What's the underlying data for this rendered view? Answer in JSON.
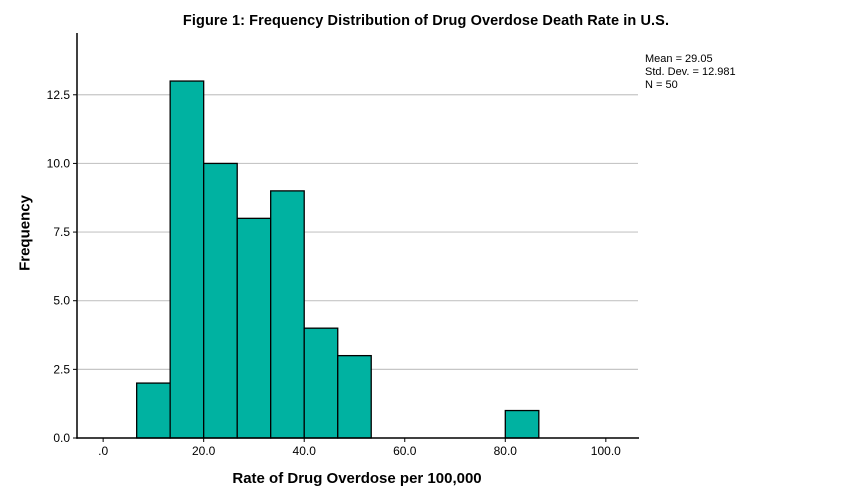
{
  "title": "Figure 1: Frequency Distribution of Drug Overdose Death Rate in U.S.",
  "colors": {
    "background": "#FFFFFF",
    "bar_fill": "#00B2A1",
    "bar_stroke": "#000000",
    "grid": "#C6C6C6",
    "axis": "#000000",
    "text": "#000000"
  },
  "chart_data": {
    "type": "bar",
    "subtype": "histogram",
    "title": "Figure 1: Frequency Distribution of Drug Overdose Death Rate in U.S.",
    "xlabel": "Rate of Drug Overdose per 100,000",
    "ylabel": "Frequency",
    "bins": [
      {
        "x0": 6.67,
        "x1": 13.33,
        "frequency": 2
      },
      {
        "x0": 13.33,
        "x1": 20,
        "frequency": 13
      },
      {
        "x0": 20,
        "x1": 26.67,
        "frequency": 10
      },
      {
        "x0": 26.67,
        "x1": 33.33,
        "frequency": 8
      },
      {
        "x0": 33.33,
        "x1": 40,
        "frequency": 9
      },
      {
        "x0": 40,
        "x1": 46.67,
        "frequency": 4
      },
      {
        "x0": 46.67,
        "x1": 53.33,
        "frequency": 3
      },
      {
        "x0": 80,
        "x1": 86.67,
        "frequency": 1
      }
    ],
    "x_ticks": [
      {
        "value": 0,
        "label": ".0"
      },
      {
        "value": 20,
        "label": "20.0"
      },
      {
        "value": 40,
        "label": "40.0"
      },
      {
        "value": 60,
        "label": "60.0"
      },
      {
        "value": 80,
        "label": "80.0"
      },
      {
        "value": 100,
        "label": "100.0"
      }
    ],
    "y_ticks": [
      {
        "value": 0,
        "label": "0.0"
      },
      {
        "value": 2.5,
        "label": "2.5"
      },
      {
        "value": 5,
        "label": "5.0"
      },
      {
        "value": 7.5,
        "label": "7.5"
      },
      {
        "value": 10,
        "label": "10.0"
      },
      {
        "value": 12.5,
        "label": "12.5"
      }
    ],
    "xlim": [
      -5.2,
      106.4
    ],
    "ylim": [
      0,
      14.75
    ],
    "grid": "horizontal-only",
    "legend": "none",
    "bar_fill": "#00B2A1",
    "bar_stroke": "#000000",
    "annotations": [
      "Mean = 29.05",
      "Std. Dev. = 12.981",
      "N = 50"
    ]
  }
}
